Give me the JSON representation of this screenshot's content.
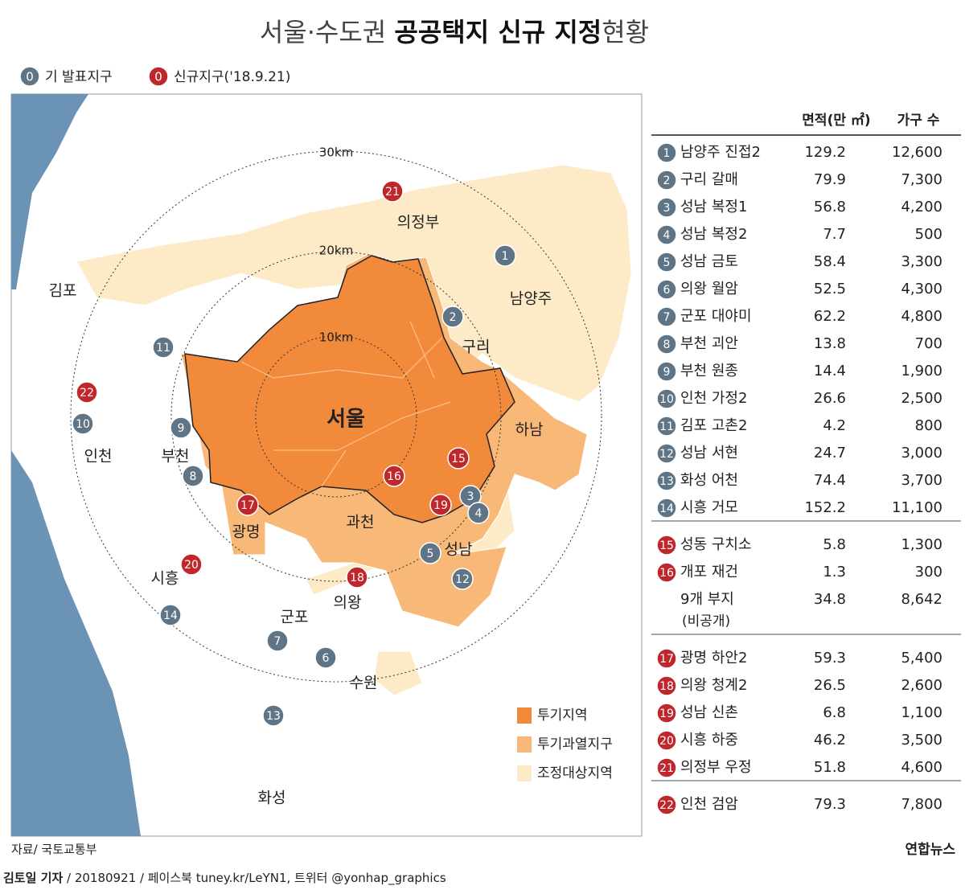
{
  "header": {
    "title_prefix": "서울·수도권 ",
    "title_bold": "공공택지 신규 지정",
    "title_suffix": "현황"
  },
  "legend": {
    "badge": "0",
    "existing": "기 발표지구",
    "new": "신규지구('18.9.21)",
    "existing_color": "#5f7585",
    "new_color": "#c0272d"
  },
  "map": {
    "rings": [
      "10km",
      "20km",
      "30km"
    ],
    "zones": [
      {
        "label": "투기지역",
        "color": "#f28a3c"
      },
      {
        "label": "투기과열지구",
        "color": "#f8b878"
      },
      {
        "label": "조정대상지역",
        "color": "#fdebc8"
      }
    ],
    "cities": [
      "의정부",
      "남양주",
      "김포",
      "구리",
      "서울",
      "하남",
      "인천",
      "부천",
      "광명",
      "과천",
      "성남",
      "시흥",
      "의왕",
      "군포",
      "수원",
      "화성"
    ],
    "markers": [
      {
        "no": "1",
        "color": "#5f7585"
      },
      {
        "no": "2",
        "color": "#5f7585"
      },
      {
        "no": "3",
        "color": "#5f7585"
      },
      {
        "no": "4",
        "color": "#5f7585"
      },
      {
        "no": "5",
        "color": "#5f7585"
      },
      {
        "no": "6",
        "color": "#5f7585"
      },
      {
        "no": "7",
        "color": "#5f7585"
      },
      {
        "no": "8",
        "color": "#5f7585"
      },
      {
        "no": "9",
        "color": "#5f7585"
      },
      {
        "no": "10",
        "color": "#5f7585"
      },
      {
        "no": "11",
        "color": "#5f7585"
      },
      {
        "no": "12",
        "color": "#5f7585"
      },
      {
        "no": "13",
        "color": "#5f7585"
      },
      {
        "no": "14",
        "color": "#5f7585"
      },
      {
        "no": "15",
        "color": "#c0272d"
      },
      {
        "no": "16",
        "color": "#c0272d"
      },
      {
        "no": "17",
        "color": "#c0272d"
      },
      {
        "no": "18",
        "color": "#c0272d"
      },
      {
        "no": "19",
        "color": "#c0272d"
      },
      {
        "no": "20",
        "color": "#c0272d"
      },
      {
        "no": "21",
        "color": "#c0272d"
      },
      {
        "no": "22",
        "color": "#c0272d"
      }
    ]
  },
  "table": {
    "headers": [
      "면적(만 ㎡)",
      "가구 수"
    ],
    "groups": [
      [
        {
          "no": "1",
          "name": "남양주 진접2",
          "area": "129.2",
          "households": "12,600"
        },
        {
          "no": "2",
          "name": "구리 갈매",
          "area": "79.9",
          "households": "7,300"
        },
        {
          "no": "3",
          "name": "성남 복정1",
          "area": "56.8",
          "households": "4,200"
        },
        {
          "no": "4",
          "name": "성남 복정2",
          "area": "7.7",
          "households": "500"
        },
        {
          "no": "5",
          "name": "성남 금토",
          "area": "58.4",
          "households": "3,300"
        },
        {
          "no": "6",
          "name": "의왕 월암",
          "area": "52.5",
          "households": "4,300"
        },
        {
          "no": "7",
          "name": "군포 대야미",
          "area": "62.2",
          "households": "4,800"
        },
        {
          "no": "8",
          "name": "부천 괴안",
          "area": "13.8",
          "households": "700"
        },
        {
          "no": "9",
          "name": "부천 원종",
          "area": "14.4",
          "households": "1,900"
        },
        {
          "no": "10",
          "name": "인천 가정2",
          "area": "26.6",
          "households": "2,500"
        },
        {
          "no": "11",
          "name": "김포 고촌2",
          "area": "4.2",
          "households": "800"
        },
        {
          "no": "12",
          "name": "성남 서현",
          "area": "24.7",
          "households": "3,000"
        },
        {
          "no": "13",
          "name": "화성 어천",
          "area": "74.4",
          "households": "3,700"
        },
        {
          "no": "14",
          "name": "시흥 거모",
          "area": "152.2",
          "households": "11,100"
        }
      ],
      [
        {
          "no": "15",
          "name": "성동 구치소",
          "area": "5.8",
          "households": "1,300"
        },
        {
          "no": "16",
          "name": "개포 재건",
          "area": "1.3",
          "households": "300"
        },
        {
          "name": "9개 부지",
          "note": "(비공개)",
          "area": "34.8",
          "households": "8,642"
        }
      ],
      [
        {
          "no": "17",
          "name": "광명 하안2",
          "area": "59.3",
          "households": "5,400"
        },
        {
          "no": "18",
          "name": "의왕 청계2",
          "area": "26.5",
          "households": "2,600"
        },
        {
          "no": "19",
          "name": "성남 신촌",
          "area": "6.8",
          "households": "1,100"
        },
        {
          "no": "20",
          "name": "시흥 하중",
          "area": "46.2",
          "households": "3,500"
        },
        {
          "no": "21",
          "name": "의정부 우정",
          "area": "51.8",
          "households": "4,600"
        }
      ],
      [
        {
          "no": "22",
          "name": "인천 검암",
          "area": "79.3",
          "households": "7,800"
        }
      ]
    ]
  },
  "footer": {
    "source": "자료/ 국토교통부",
    "logo": "연합뉴스",
    "author": "김토일 기자",
    "credit": " / 20180921 / 페이스북 tuney.kr/LeYN1, 트위터 @yonhap_graphics"
  }
}
